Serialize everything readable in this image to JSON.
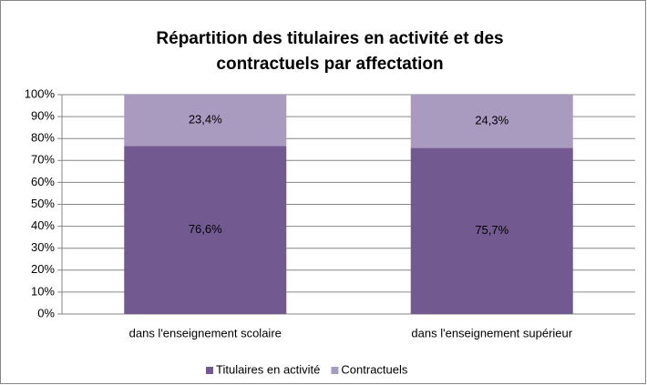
{
  "chart_data": {
    "type": "stacked_bar",
    "title": [
      "Répartition des titulaires en activité et des",
      "contractuels par affectation"
    ],
    "categories": [
      "dans l'enseignement scolaire",
      "dans l'enseignement supérieur"
    ],
    "series": [
      {
        "name": "Titulaires en activité",
        "color": "#725a91",
        "values": [
          76.6,
          75.7
        ],
        "value_labels": [
          "76,6%",
          "75,7%"
        ]
      },
      {
        "name": "Contractuels",
        "color": "#a99bc0",
        "values": [
          23.4,
          24.3
        ],
        "value_labels": [
          "23,4%",
          "24,3%"
        ]
      }
    ],
    "ylim": [
      0,
      100
    ],
    "yticks": [
      {
        "value": 0,
        "label": "0%"
      },
      {
        "value": 10,
        "label": "10%"
      },
      {
        "value": 20,
        "label": "20%"
      },
      {
        "value": 30,
        "label": "30%"
      },
      {
        "value": 40,
        "label": "40%"
      },
      {
        "value": 50,
        "label": "50%"
      },
      {
        "value": 60,
        "label": "60%"
      },
      {
        "value": 70,
        "label": "70%"
      },
      {
        "value": 80,
        "label": "80%"
      },
      {
        "value": 90,
        "label": "90%"
      },
      {
        "value": 100,
        "label": "100%"
      }
    ],
    "grid": true,
    "legend": "bottom"
  }
}
